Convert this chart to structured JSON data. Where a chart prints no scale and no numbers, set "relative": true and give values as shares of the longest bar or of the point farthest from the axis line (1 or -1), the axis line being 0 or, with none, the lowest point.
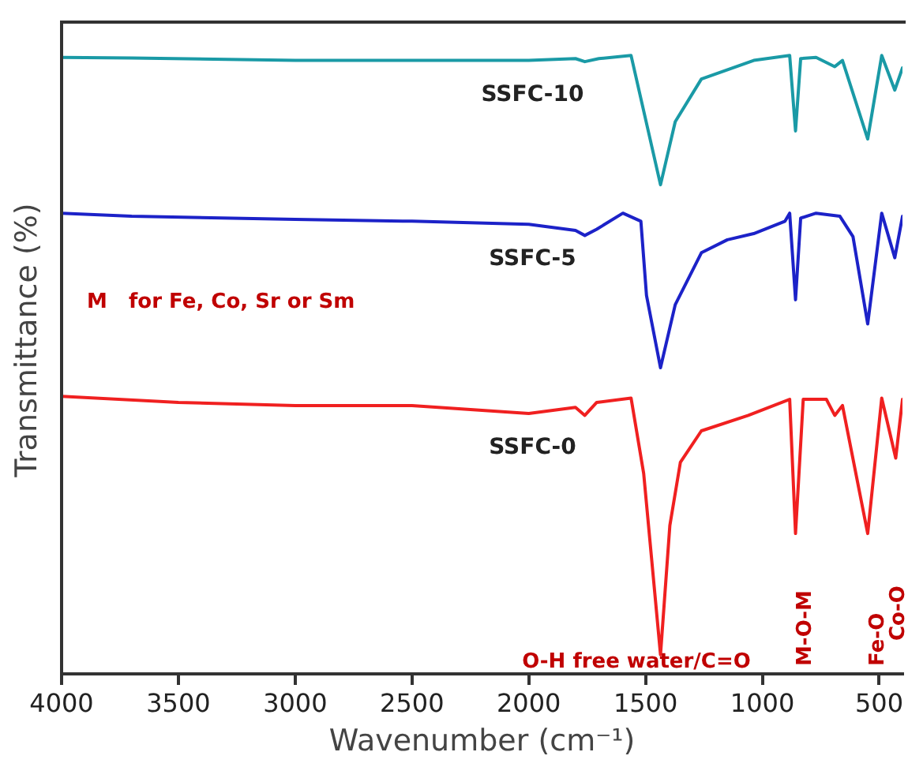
{
  "chart_data": {
    "type": "line",
    "relative": true,
    "xlabel": "Wavenumber (cm⁻¹)",
    "ylabel": "Transmittance (%)",
    "xlim": [
      4000,
      400
    ],
    "xticks": [
      4000,
      3500,
      3000,
      2500,
      2000,
      1500,
      1000,
      500
    ],
    "grid": false,
    "legend": false,
    "marker": "none",
    "line_style": "solid",
    "series": [
      {
        "name": "SSFC-10",
        "color": "#1a9aa6",
        "x": [
          4000,
          3700,
          3000,
          2500,
          2000,
          1800,
          1760,
          1700,
          1562,
          1436,
          1373,
          1261,
          1037,
          883,
          858,
          836,
          770,
          690,
          657,
          549,
          489,
          433,
          400
        ],
        "values": [
          0.997,
          0.996,
          0.992,
          0.992,
          0.992,
          0.995,
          0.99,
          0.995,
          1.0,
          0.791,
          0.893,
          0.962,
          0.992,
          1.0,
          0.878,
          0.995,
          0.997,
          0.982,
          0.992,
          0.865,
          1.0,
          0.944,
          0.98
        ]
      },
      {
        "name": "SSFC-5",
        "color": "#1c22c8",
        "x": [
          4000,
          3700,
          3000,
          2500,
          2000,
          1800,
          1760,
          1709,
          1597,
          1520,
          1496,
          1436,
          1373,
          1261,
          1150,
          1037,
          903,
          883,
          858,
          836,
          770,
          668,
          612,
          549,
          489,
          433,
          400
        ],
        "values": [
          0.745,
          0.74,
          0.735,
          0.732,
          0.727,
          0.717,
          0.709,
          0.719,
          0.745,
          0.732,
          0.612,
          0.495,
          0.597,
          0.681,
          0.702,
          0.712,
          0.732,
          0.745,
          0.605,
          0.737,
          0.745,
          0.74,
          0.707,
          0.566,
          0.745,
          0.673,
          0.74
        ]
      },
      {
        "name": "SSFC-0",
        "color": "#f02020",
        "x": [
          4000,
          3500,
          3000,
          2500,
          2000,
          1800,
          1760,
          1709,
          1562,
          1508,
          1436,
          1396,
          1351,
          1261,
          1060,
          883,
          858,
          825,
          726,
          690,
          657,
          549,
          489,
          429,
          400
        ],
        "values": [
          0.449,
          0.439,
          0.434,
          0.434,
          0.421,
          0.431,
          0.418,
          0.439,
          0.446,
          0.324,
          0.031,
          0.24,
          0.342,
          0.393,
          0.418,
          0.444,
          0.227,
          0.444,
          0.444,
          0.418,
          0.434,
          0.227,
          0.446,
          0.349,
          0.444
        ]
      }
    ],
    "annotations": [
      "M   for Fe, Co, Sr or Sm",
      "O-H free water/C=O",
      "M-O-M",
      "Fe-O",
      "Co-O"
    ]
  }
}
